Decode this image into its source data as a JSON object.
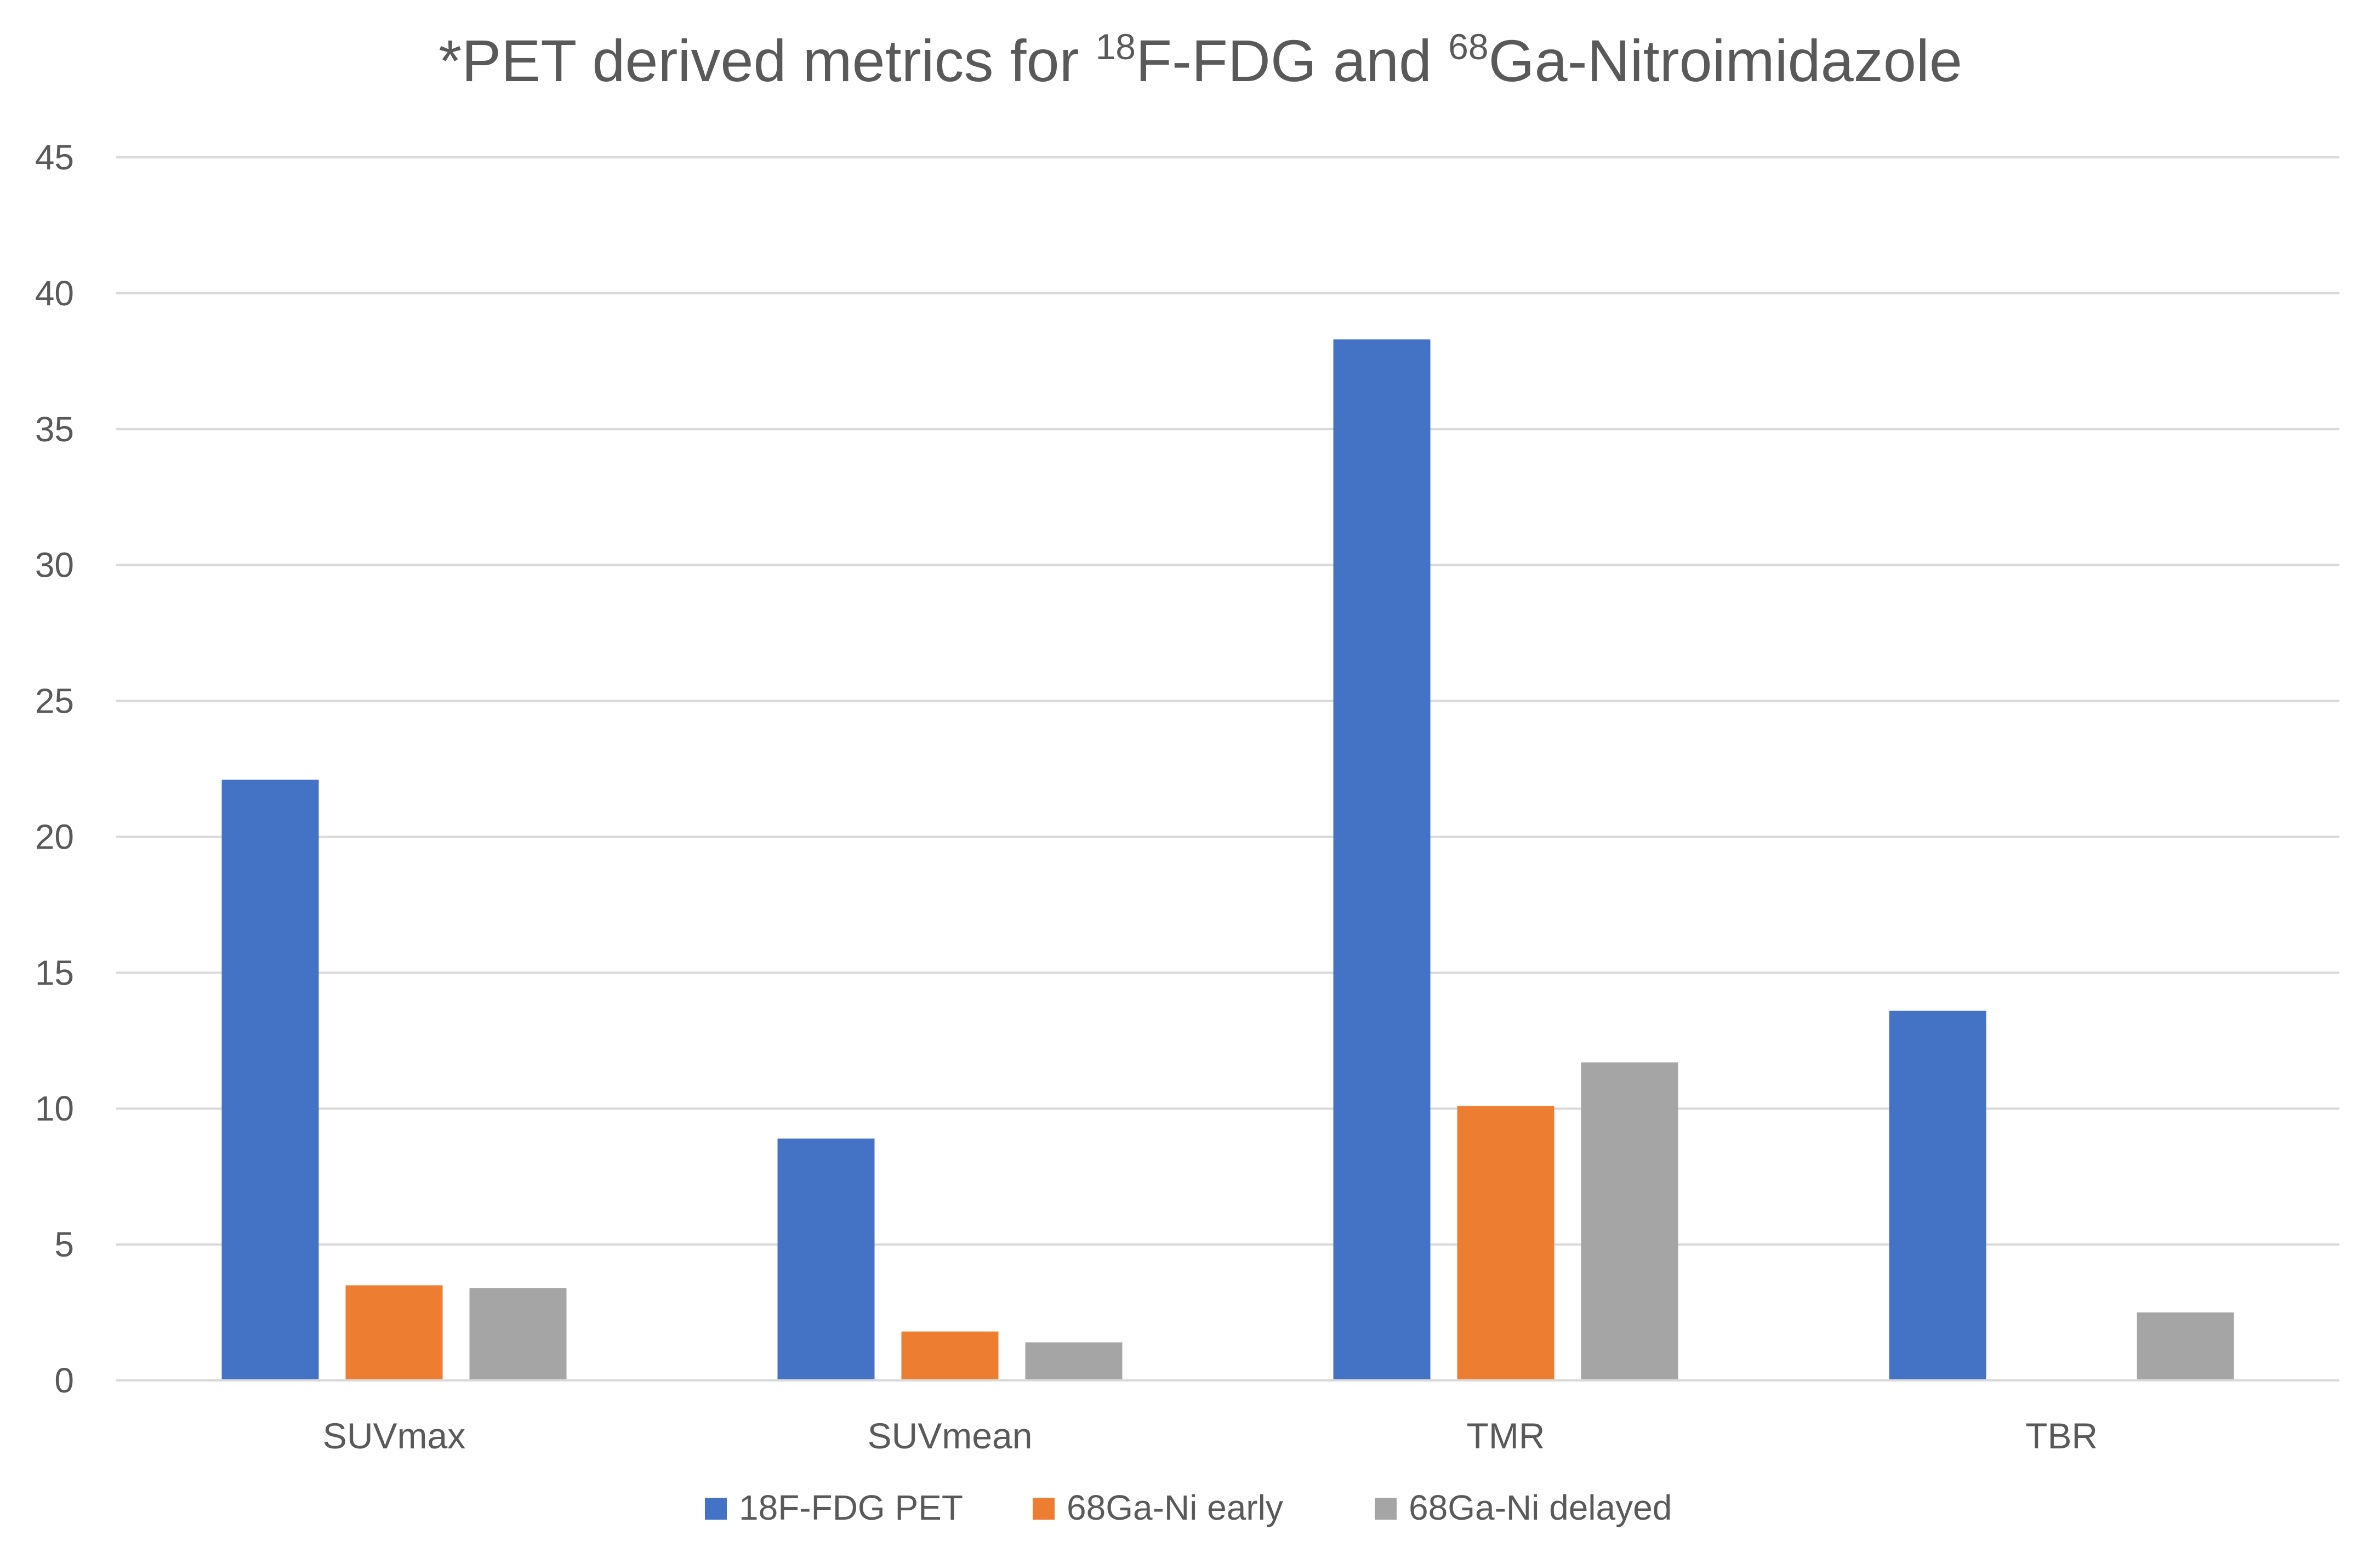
{
  "chart_data": {
    "type": "bar",
    "title": {
      "prefix": "*PET derived metrics for ",
      "sup1": "18",
      "mid": "F-FDG and ",
      "sup2": "68",
      "suffix": "Ga-Nitroimidazole"
    },
    "xlabel": "",
    "ylabel": "",
    "categories": [
      "SUVmax",
      "SUVmean",
      "TMR",
      "TBR"
    ],
    "series": [
      {
        "name": "18F-FDG PET",
        "color": "#4472C4",
        "values": [
          22.1,
          8.9,
          38.3,
          13.6
        ]
      },
      {
        "name": "68Ga-Ni early",
        "color": "#ED7D31",
        "values": [
          3.5,
          1.8,
          10.1,
          null
        ]
      },
      {
        "name": "68Ga-Ni delayed",
        "color": "#A5A5A5",
        "values": [
          3.4,
          1.4,
          11.7,
          2.5
        ]
      }
    ],
    "ylim": [
      0,
      45
    ],
    "yticks": [
      0,
      5,
      10,
      15,
      20,
      25,
      30,
      35,
      40,
      45
    ],
    "grid": true,
    "legend": "bottom"
  }
}
